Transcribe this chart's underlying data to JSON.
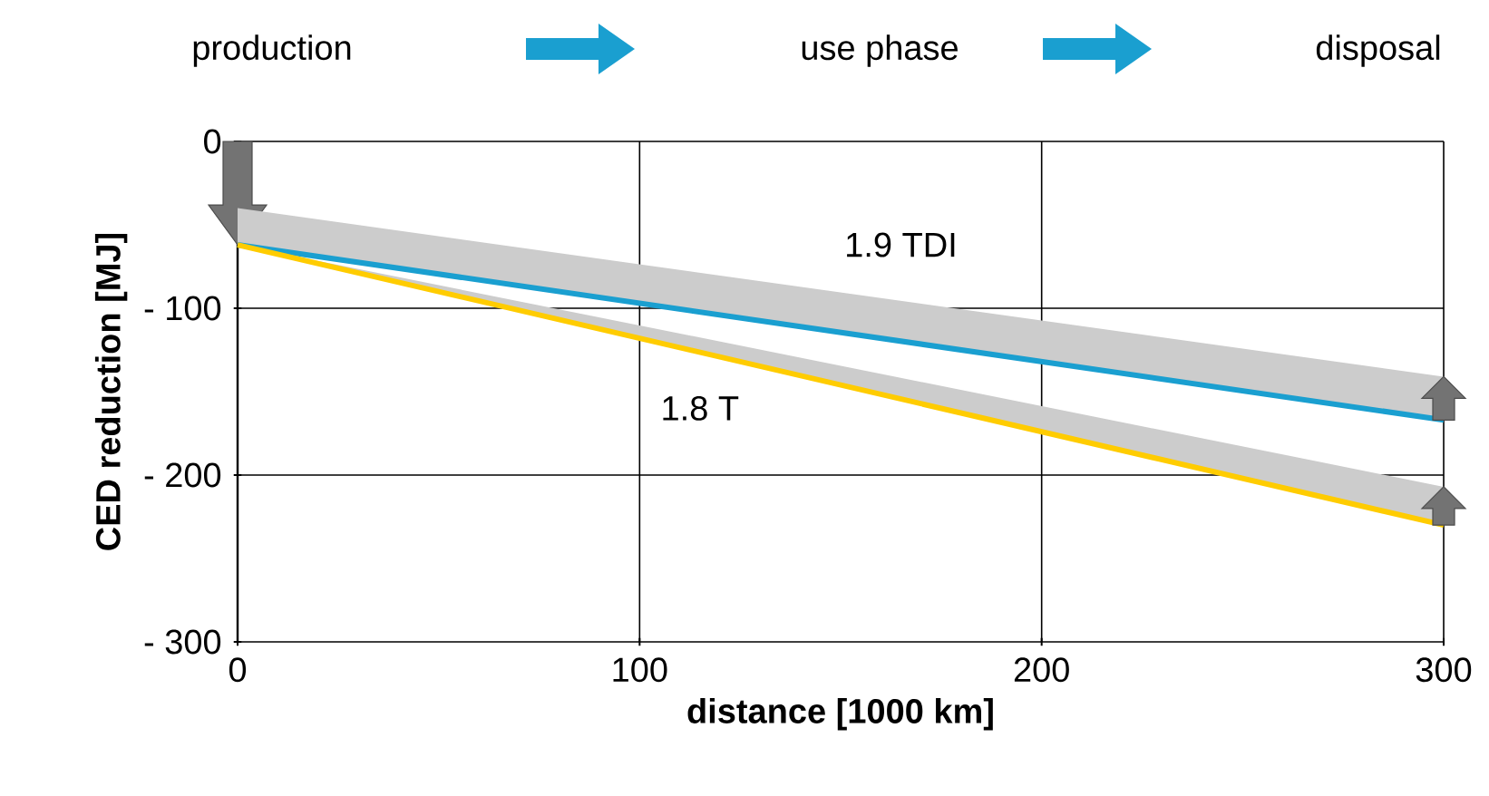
{
  "chart_data": {
    "type": "line",
    "xlabel": "distance [1000 km]",
    "ylabel": "CED reduction [MJ]",
    "annotations": [
      "production",
      "use phase",
      "disposal"
    ],
    "x": [
      0,
      300
    ],
    "xlim": [
      0,
      300
    ],
    "ylim": [
      -300,
      0
    ],
    "xticks": [
      0,
      100,
      200,
      300
    ],
    "yticks": [
      0,
      {
        "value": -100,
        "label": "- 100"
      },
      {
        "value": -200,
        "label": "- 200"
      },
      {
        "value": -300,
        "label": "- 300"
      }
    ],
    "grid": true,
    "series": [
      {
        "name": "1.9 TDI",
        "color": "#1a9fd0",
        "values": [
          -62,
          -167
        ],
        "lower": [
          -62,
          -167
        ],
        "upper": [
          -40,
          -141
        ]
      },
      {
        "name": "1.8 T",
        "color": "#ffcc00",
        "values": [
          -62,
          -230
        ],
        "lower": [
          -62,
          -230
        ],
        "upper": [
          -62,
          -207
        ]
      }
    ]
  }
}
